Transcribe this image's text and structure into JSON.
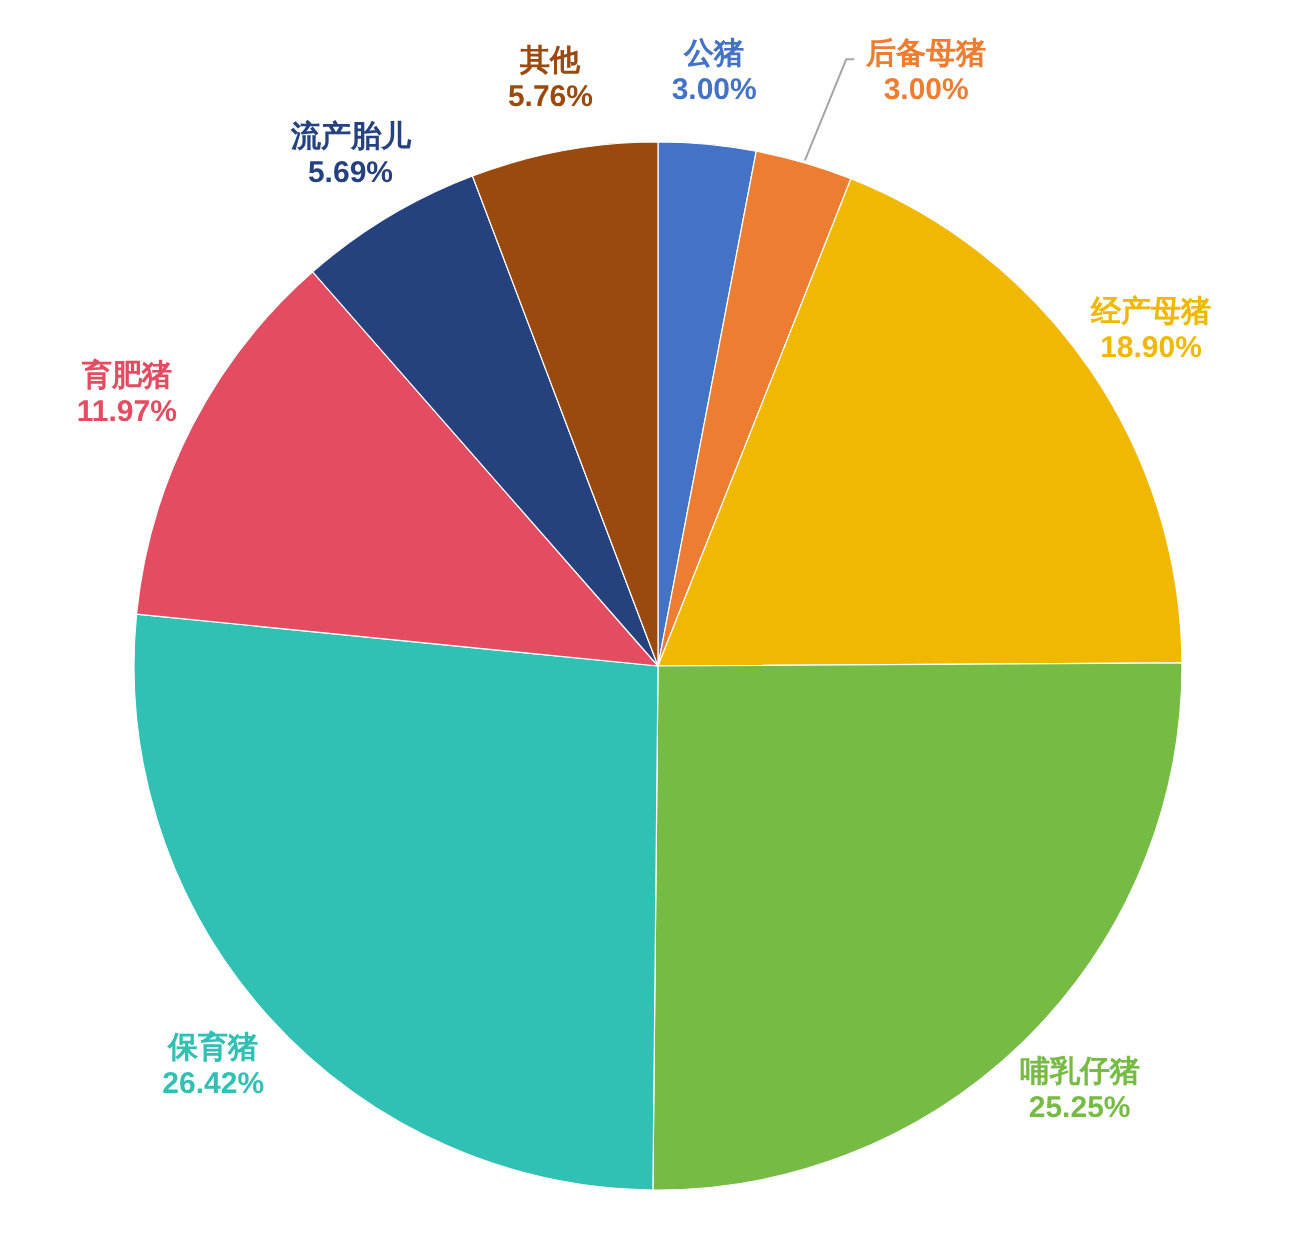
{
  "chart_data": {
    "type": "pie",
    "categories": [
      "公猪",
      "后备母猪",
      "经产母猪",
      "哺乳仔猪",
      "保育猪",
      "育肥猪",
      "流产胎儿",
      "其他"
    ],
    "values": [
      3.0,
      3.0,
      18.9,
      25.25,
      26.42,
      11.97,
      5.69,
      5.76
    ],
    "colors": [
      "#4472c4",
      "#ed7d31",
      "#f0b800",
      "#76bb43",
      "#30c0b4",
      "#e34c61",
      "#26427e",
      "#9a4a0e"
    ],
    "value_labels": [
      "3.00%",
      "3.00%",
      "18.90%",
      "25.25%",
      "26.42%",
      "11.97%",
      "5.69%",
      "5.76%"
    ],
    "legend": false
  }
}
